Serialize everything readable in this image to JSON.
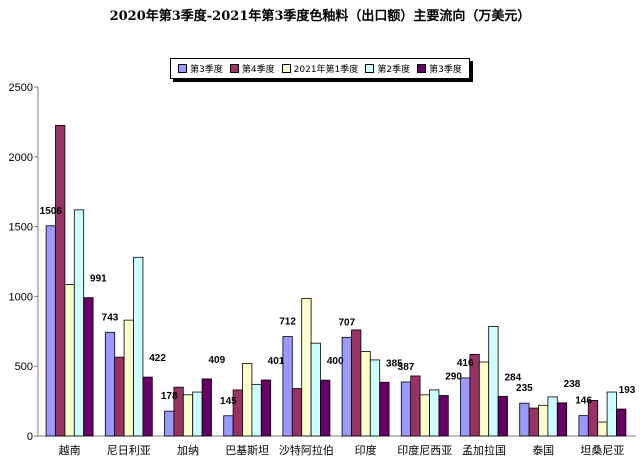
{
  "chart_data": {
    "type": "bar",
    "title": "2020年第3季度-2021年第3季度色釉料（出口额）主要流向（万美元）",
    "categories": [
      "越南",
      "尼日利亚",
      "加纳",
      "巴基斯坦",
      "沙特阿拉伯",
      "印度",
      "印度尼西亚",
      "孟加拉国",
      "泰国",
      "坦桑尼亚"
    ],
    "series": [
      {
        "name": "第3季度",
        "color": "#9999FF",
        "show_labels": true,
        "values": [
          1506,
          743,
          178,
          145,
          712,
          707,
          387,
          416,
          235,
          146
        ]
      },
      {
        "name": "第4季度",
        "color": "#993366",
        "show_labels": false,
        "values": [
          2225,
          565,
          350,
          330,
          340,
          760,
          430,
          585,
          200,
          255
        ]
      },
      {
        "name": "2021年第1季度",
        "color": "#FFFFCC",
        "show_labels": false,
        "values": [
          1085,
          830,
          295,
          520,
          985,
          605,
          295,
          530,
          220,
          100
        ]
      },
      {
        "name": "第2季度",
        "color": "#CCFFFF",
        "show_labels": false,
        "values": [
          1620,
          1280,
          315,
          370,
          665,
          545,
          330,
          785,
          280,
          315
        ]
      },
      {
        "name": "第3季度",
        "color": "#660066",
        "show_labels": true,
        "values": [
          991,
          422,
          409,
          401,
          400,
          385,
          290,
          284,
          238,
          193
        ]
      }
    ],
    "ylim": [
      0,
      2500
    ],
    "yticks": [
      0,
      500,
      1000,
      1500,
      2000,
      2500
    ],
    "legend": "top",
    "grid": false
  }
}
